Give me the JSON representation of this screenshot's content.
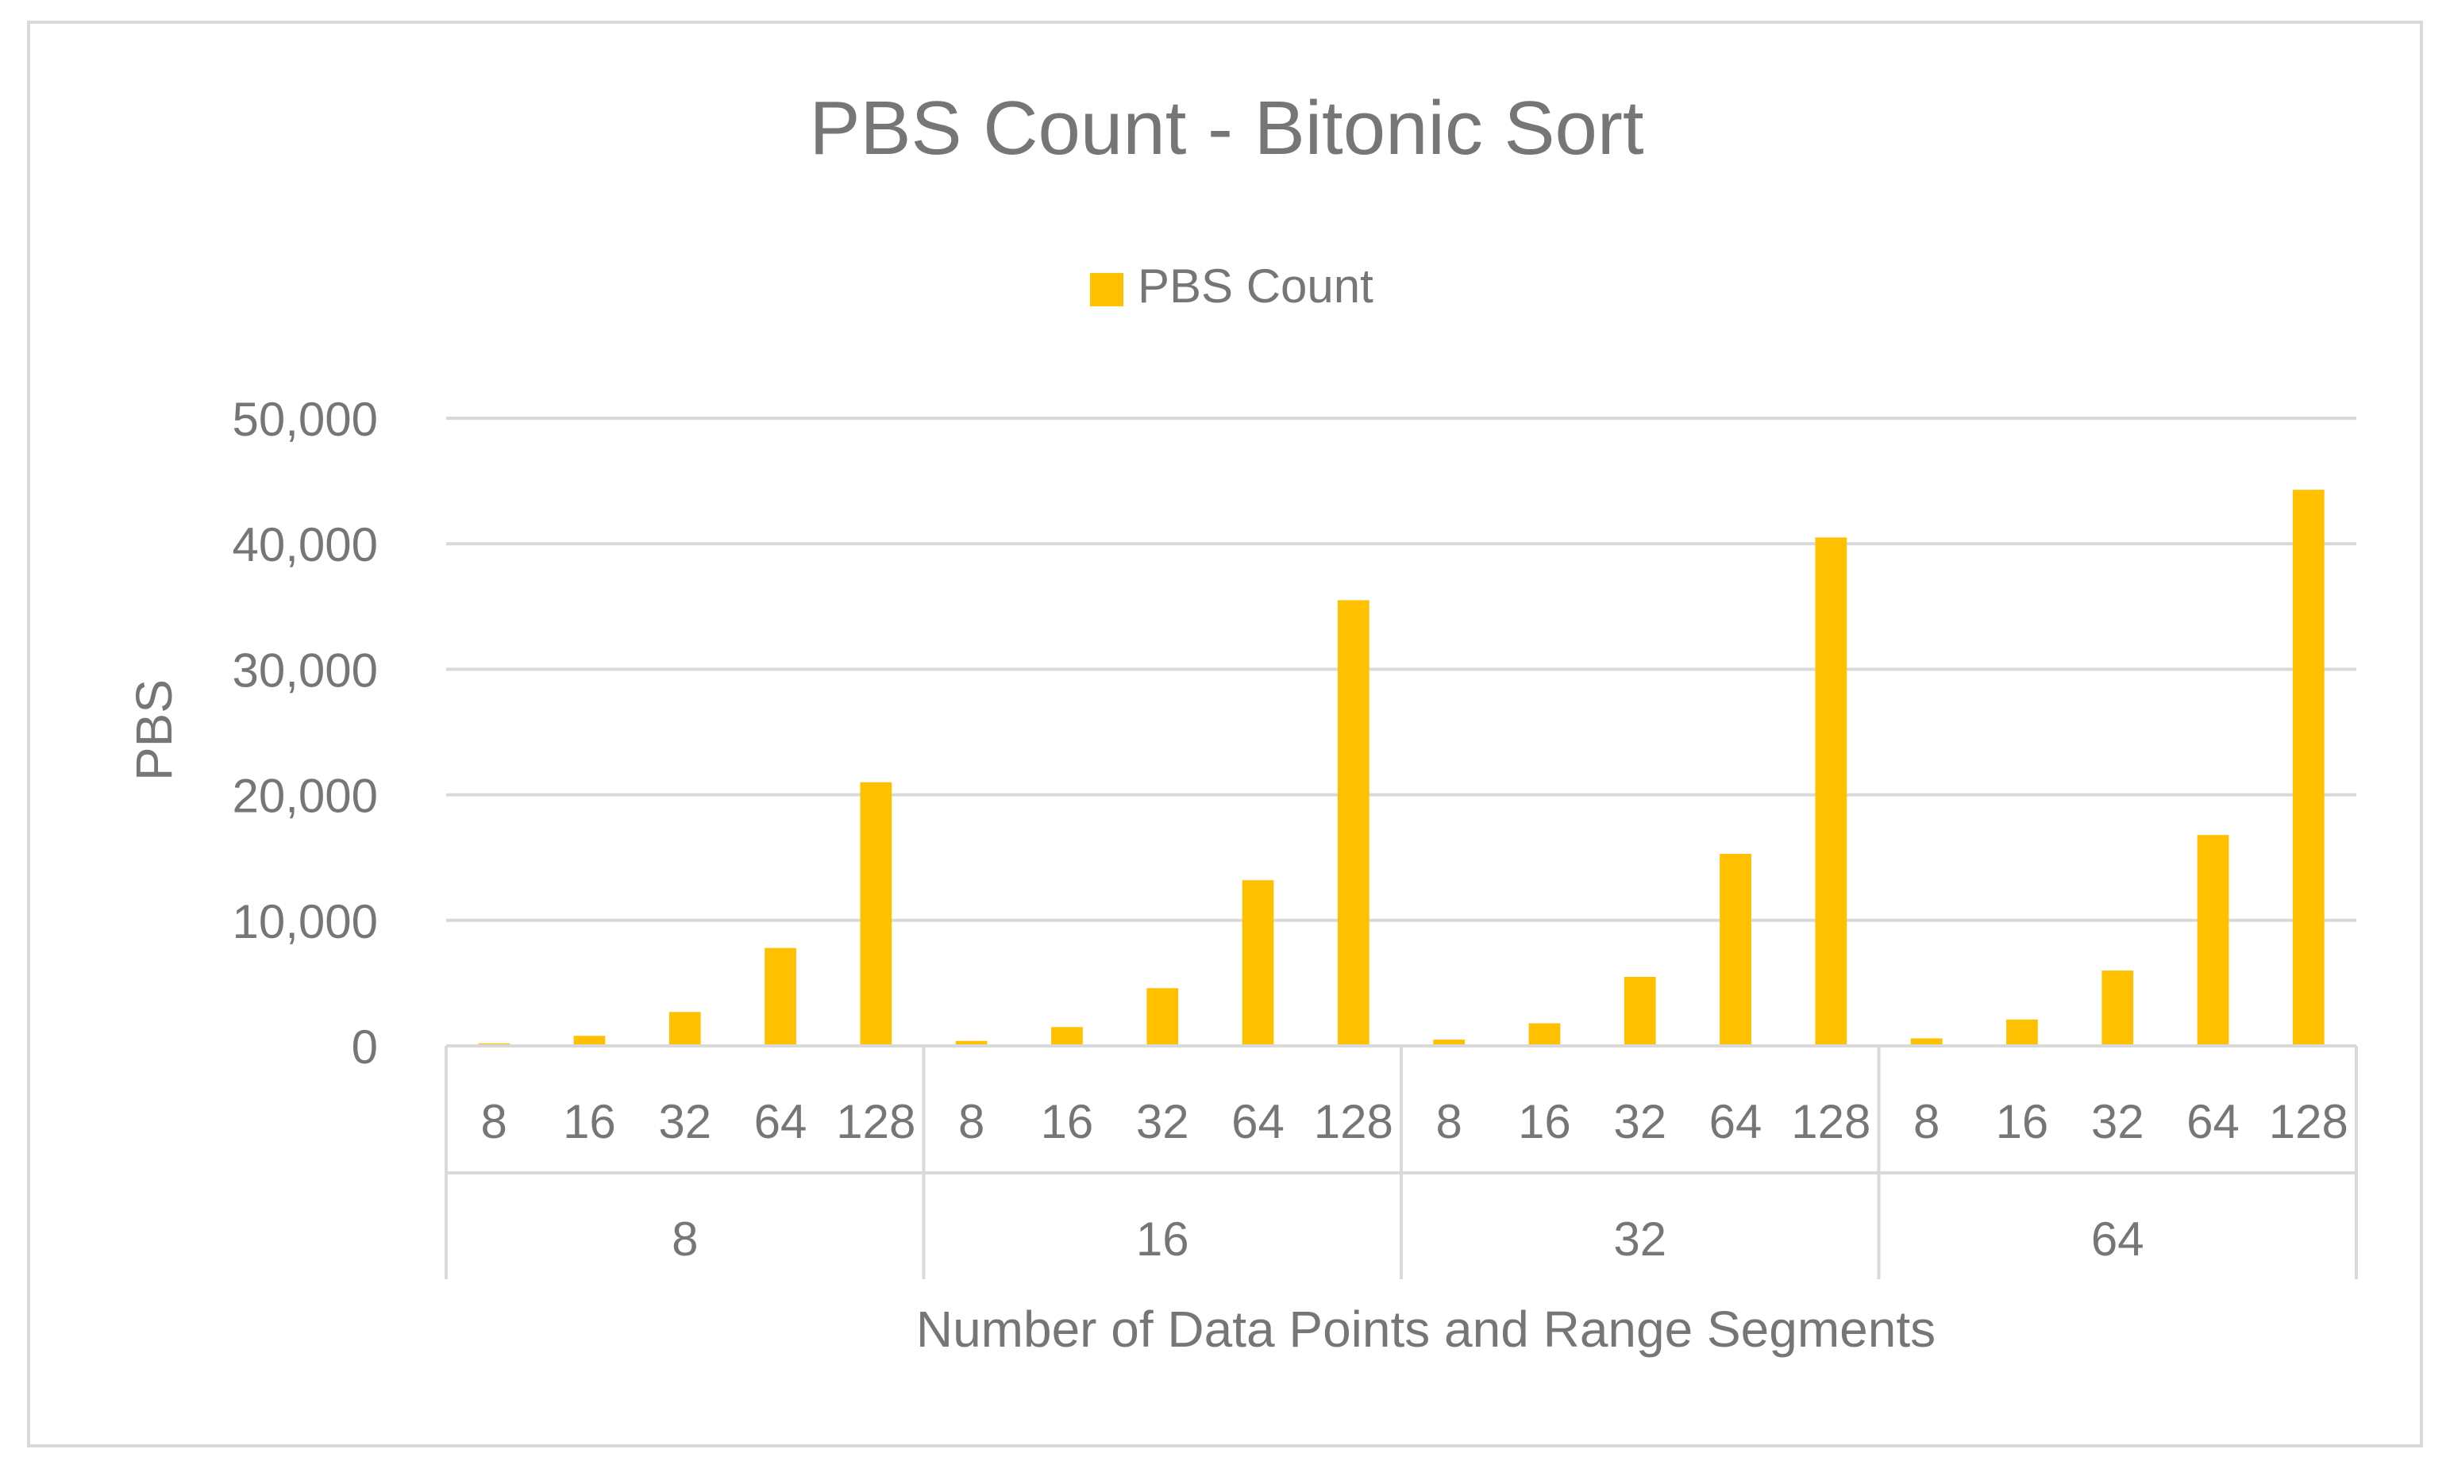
{
  "chart_data": {
    "type": "bar",
    "title": "PBS Count - Bitonic Sort",
    "xlabel": "Number of Data Points and Range Segments",
    "ylabel": "PBS",
    "ylim": [
      0,
      50000
    ],
    "yticks": [
      0,
      10000,
      20000,
      30000,
      40000,
      50000
    ],
    "ytick_labels": [
      "0",
      "10,000",
      "20,000",
      "30,000",
      "40,000",
      "50,000"
    ],
    "grid": true,
    "legend_position": "top-center",
    "bar_color": "#FFC000",
    "groups": [
      {
        "label": "8",
        "categories": [
          "8",
          "16",
          "32",
          "64",
          "128"
        ],
        "values": [
          200,
          800,
          2700,
          7800,
          21000
        ]
      },
      {
        "label": "16",
        "categories": [
          "8",
          "16",
          "32",
          "64",
          "128"
        ],
        "values": [
          400,
          1500,
          4600,
          13200,
          35500
        ]
      },
      {
        "label": "32",
        "categories": [
          "8",
          "16",
          "32",
          "64",
          "128"
        ],
        "values": [
          500,
          1800,
          5500,
          15300,
          40500
        ]
      },
      {
        "label": "64",
        "categories": [
          "8",
          "16",
          "32",
          "64",
          "128"
        ],
        "values": [
          600,
          2100,
          6000,
          16800,
          44300
        ]
      }
    ],
    "series": [
      {
        "name": "PBS Count",
        "values": [
          200,
          800,
          2700,
          7800,
          21000,
          400,
          1500,
          4600,
          13200,
          35500,
          500,
          1800,
          5500,
          15300,
          40500,
          600,
          2100,
          6000,
          16800,
          44300
        ]
      }
    ]
  }
}
